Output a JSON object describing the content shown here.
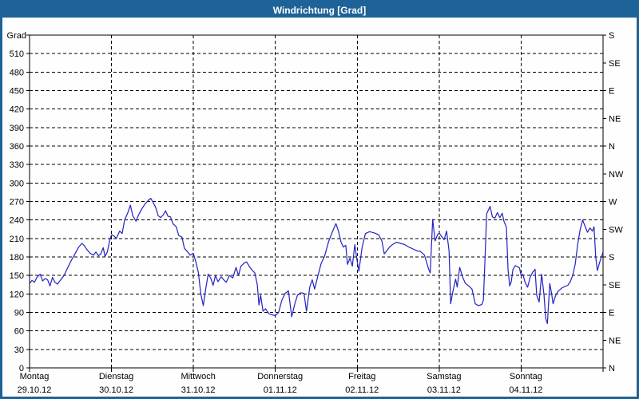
{
  "window": {
    "title": "Windrichtung [Grad]",
    "titlebar_color": "#1d6398",
    "background": "#fdfefd"
  },
  "chart_data": {
    "type": "line",
    "title": "Windrichtung [Grad]",
    "ylabel_left": "Grad",
    "y_left": {
      "min": 0,
      "max": 540,
      "step": 30,
      "tick_labels": [
        "0",
        "30",
        "60",
        "90",
        "120",
        "150",
        "180",
        "210",
        "240",
        "270",
        "300",
        "330",
        "360",
        "390",
        "420",
        "450",
        "480",
        "510"
      ],
      "top_corner_label": "Grad"
    },
    "y_right": {
      "step": 45,
      "tick_labels_bottom_to_top": [
        "N",
        "NE",
        "E",
        "SE",
        "S",
        "SW",
        "W",
        "NW",
        "N",
        "NE",
        "E",
        "SE",
        "S"
      ]
    },
    "x": {
      "days": [
        {
          "name": "Montag",
          "date": "29.10.12"
        },
        {
          "name": "Dienstag",
          "date": "30.10.12"
        },
        {
          "name": "Mittwoch",
          "date": "31.10.12"
        },
        {
          "name": "Donnerstag",
          "date": "01.11.12"
        },
        {
          "name": "Freitag",
          "date": "02.11.12"
        },
        {
          "name": "Samstag",
          "date": "03.11.12"
        },
        {
          "name": "Sonntag",
          "date": "04.11.12"
        }
      ]
    },
    "grid": {
      "style": "dashed",
      "color": "#000000"
    },
    "line_color": "#2222c2",
    "axis_color": "#000000",
    "series": [
      {
        "name": "Windrichtung",
        "points": [
          [
            0.0,
            137
          ],
          [
            0.03,
            142
          ],
          [
            0.06,
            139
          ],
          [
            0.09,
            147
          ],
          [
            0.13,
            152
          ],
          [
            0.16,
            141
          ],
          [
            0.19,
            145
          ],
          [
            0.22,
            143
          ],
          [
            0.25,
            133
          ],
          [
            0.28,
            147
          ],
          [
            0.31,
            139
          ],
          [
            0.34,
            136
          ],
          [
            0.38,
            143
          ],
          [
            0.42,
            150
          ],
          [
            0.46,
            161
          ],
          [
            0.5,
            172
          ],
          [
            0.55,
            184
          ],
          [
            0.6,
            196
          ],
          [
            0.64,
            202
          ],
          [
            0.67,
            198
          ],
          [
            0.7,
            192
          ],
          [
            0.74,
            186
          ],
          [
            0.78,
            183
          ],
          [
            0.81,
            188
          ],
          [
            0.84,
            182
          ],
          [
            0.87,
            185
          ],
          [
            0.9,
            195
          ],
          [
            0.92,
            181
          ],
          [
            0.95,
            188
          ],
          [
            0.98,
            208
          ],
          [
            1.0,
            216
          ],
          [
            1.03,
            214
          ],
          [
            1.06,
            210
          ],
          [
            1.1,
            222
          ],
          [
            1.13,
            218
          ],
          [
            1.16,
            240
          ],
          [
            1.2,
            252
          ],
          [
            1.23,
            264
          ],
          [
            1.26,
            247
          ],
          [
            1.3,
            238
          ],
          [
            1.33,
            248
          ],
          [
            1.37,
            258
          ],
          [
            1.41,
            266
          ],
          [
            1.45,
            272
          ],
          [
            1.48,
            275
          ],
          [
            1.51,
            268
          ],
          [
            1.54,
            260
          ],
          [
            1.57,
            247
          ],
          [
            1.6,
            244
          ],
          [
            1.63,
            248
          ],
          [
            1.66,
            255
          ],
          [
            1.69,
            246
          ],
          [
            1.72,
            245
          ],
          [
            1.75,
            234
          ],
          [
            1.79,
            229
          ],
          [
            1.82,
            215
          ],
          [
            1.86,
            212
          ],
          [
            1.89,
            194
          ],
          [
            1.93,
            188
          ],
          [
            1.96,
            183
          ],
          [
            2.0,
            186
          ],
          [
            2.03,
            172
          ],
          [
            2.06,
            155
          ],
          [
            2.09,
            120
          ],
          [
            2.12,
            101
          ],
          [
            2.15,
            128
          ],
          [
            2.18,
            152
          ],
          [
            2.21,
            146
          ],
          [
            2.24,
            134
          ],
          [
            2.27,
            150
          ],
          [
            2.3,
            140
          ],
          [
            2.34,
            148
          ],
          [
            2.37,
            143
          ],
          [
            2.4,
            139
          ],
          [
            2.44,
            150
          ],
          [
            2.48,
            146
          ],
          [
            2.52,
            163
          ],
          [
            2.55,
            150
          ],
          [
            2.58,
            165
          ],
          [
            2.62,
            170
          ],
          [
            2.65,
            172
          ],
          [
            2.68,
            165
          ],
          [
            2.72,
            158
          ],
          [
            2.75,
            154
          ],
          [
            2.78,
            135
          ],
          [
            2.8,
            102
          ],
          [
            2.82,
            118
          ],
          [
            2.85,
            92
          ],
          [
            2.88,
            96
          ],
          [
            2.92,
            88
          ],
          [
            2.96,
            86
          ],
          [
            3.0,
            85
          ],
          [
            3.04,
            90
          ],
          [
            3.08,
            110
          ],
          [
            3.12,
            121
          ],
          [
            3.16,
            125
          ],
          [
            3.2,
            83
          ],
          [
            3.24,
            105
          ],
          [
            3.27,
            118
          ],
          [
            3.31,
            122
          ],
          [
            3.35,
            121
          ],
          [
            3.38,
            92
          ],
          [
            3.42,
            131
          ],
          [
            3.45,
            143
          ],
          [
            3.48,
            128
          ],
          [
            3.52,
            150
          ],
          [
            3.56,
            170
          ],
          [
            3.6,
            181
          ],
          [
            3.65,
            205
          ],
          [
            3.7,
            222
          ],
          [
            3.74,
            234
          ],
          [
            3.77,
            222
          ],
          [
            3.8,
            205
          ],
          [
            3.83,
            196
          ],
          [
            3.86,
            199
          ],
          [
            3.88,
            168
          ],
          [
            3.91,
            178
          ],
          [
            3.94,
            165
          ],
          [
            3.97,
            200
          ],
          [
            4.0,
            172
          ],
          [
            4.02,
            157
          ],
          [
            4.06,
            196
          ],
          [
            4.1,
            218
          ],
          [
            4.15,
            221
          ],
          [
            4.21,
            219
          ],
          [
            4.26,
            216
          ],
          [
            4.3,
            206
          ],
          [
            4.33,
            185
          ],
          [
            4.36,
            190
          ],
          [
            4.4,
            197
          ],
          [
            4.44,
            201
          ],
          [
            4.48,
            204
          ],
          [
            4.53,
            202
          ],
          [
            4.58,
            200
          ],
          [
            4.63,
            196
          ],
          [
            4.68,
            193
          ],
          [
            4.73,
            190
          ],
          [
            4.77,
            189
          ],
          [
            4.82,
            183
          ],
          [
            4.87,
            161
          ],
          [
            4.89,
            154
          ],
          [
            4.92,
            241
          ],
          [
            4.95,
            206
          ],
          [
            4.98,
            216
          ],
          [
            5.0,
            219
          ],
          [
            5.03,
            213
          ],
          [
            5.06,
            208
          ],
          [
            5.09,
            222
          ],
          [
            5.12,
            190
          ],
          [
            5.14,
            104
          ],
          [
            5.17,
            126
          ],
          [
            5.2,
            144
          ],
          [
            5.22,
            131
          ],
          [
            5.25,
            163
          ],
          [
            5.29,
            146
          ],
          [
            5.32,
            137
          ],
          [
            5.36,
            133
          ],
          [
            5.4,
            128
          ],
          [
            5.44,
            104
          ],
          [
            5.48,
            101
          ],
          [
            5.52,
            103
          ],
          [
            5.54,
            110
          ],
          [
            5.56,
            180
          ],
          [
            5.58,
            250
          ],
          [
            5.62,
            262
          ],
          [
            5.65,
            245
          ],
          [
            5.68,
            243
          ],
          [
            5.71,
            252
          ],
          [
            5.74,
            244
          ],
          [
            5.77,
            251
          ],
          [
            5.79,
            238
          ],
          [
            5.82,
            228
          ],
          [
            5.84,
            160
          ],
          [
            5.86,
            133
          ],
          [
            5.88,
            140
          ],
          [
            5.9,
            160
          ],
          [
            5.93,
            166
          ],
          [
            5.96,
            164
          ],
          [
            5.98,
            162
          ],
          [
            6.0,
            150
          ],
          [
            6.02,
            152
          ],
          [
            6.05,
            138
          ],
          [
            6.08,
            131
          ],
          [
            6.11,
            147
          ],
          [
            6.14,
            155
          ],
          [
            6.17,
            160
          ],
          [
            6.19,
            118
          ],
          [
            6.22,
            107
          ],
          [
            6.25,
            152
          ],
          [
            6.28,
            118
          ],
          [
            6.3,
            80
          ],
          [
            6.32,
            72
          ],
          [
            6.35,
            137
          ],
          [
            6.37,
            122
          ],
          [
            6.39,
            104
          ],
          [
            6.42,
            117
          ],
          [
            6.45,
            124
          ],
          [
            6.49,
            129
          ],
          [
            6.53,
            132
          ],
          [
            6.57,
            134
          ],
          [
            6.6,
            140
          ],
          [
            6.63,
            150
          ],
          [
            6.66,
            168
          ],
          [
            6.69,
            200
          ],
          [
            6.72,
            224
          ],
          [
            6.75,
            240
          ],
          [
            6.78,
            230
          ],
          [
            6.81,
            220
          ],
          [
            6.84,
            227
          ],
          [
            6.87,
            222
          ],
          [
            6.89,
            229
          ],
          [
            6.91,
            180
          ],
          [
            6.93,
            158
          ],
          [
            6.96,
            172
          ],
          [
            7.0,
            188
          ]
        ]
      }
    ]
  }
}
